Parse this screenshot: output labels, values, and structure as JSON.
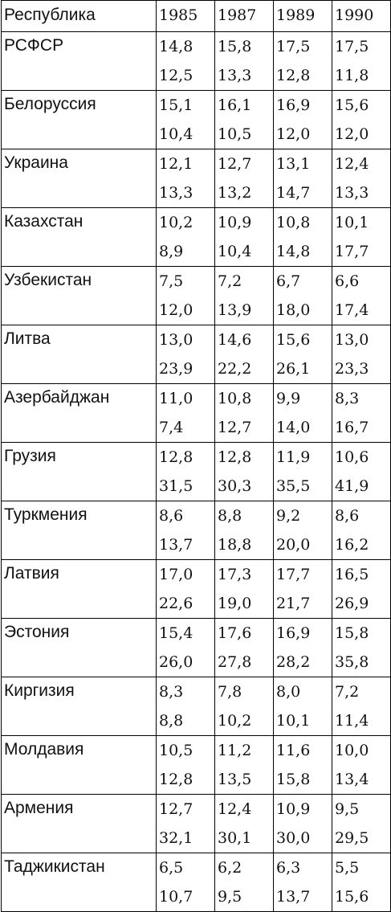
{
  "table": {
    "header": [
      "Республика",
      "1985",
      "1987",
      "1989",
      "1990"
    ],
    "rows": [
      {
        "label": "РСФСР",
        "cells": [
          [
            "14,8",
            "12,5"
          ],
          [
            "15,8",
            "13,3"
          ],
          [
            "17,5",
            "12,8"
          ],
          [
            "17,5",
            "11,8"
          ]
        ]
      },
      {
        "label": "Белоруссия",
        "cells": [
          [
            "15,1",
            "10,4"
          ],
          [
            "16,1",
            "10,5"
          ],
          [
            "16,9",
            "12,0"
          ],
          [
            "15,6",
            "12,0"
          ]
        ]
      },
      {
        "label": "Украина",
        "cells": [
          [
            "12,1",
            "13,3"
          ],
          [
            "12,7",
            "13,2"
          ],
          [
            "13,1",
            "14,7"
          ],
          [
            "12,4",
            "13,3"
          ]
        ]
      },
      {
        "label": "Казахстан",
        "cells": [
          [
            "10,2",
            "8,9"
          ],
          [
            "10,9",
            "10,4"
          ],
          [
            "10,8",
            "14,8"
          ],
          [
            "10,1",
            "17,7"
          ]
        ]
      },
      {
        "label": "Узбекистан",
        "cells": [
          [
            "7,5",
            "12,0"
          ],
          [
            "7,2",
            "13,9"
          ],
          [
            "6,7",
            "18,0"
          ],
          [
            "6,6",
            "17,4"
          ]
        ]
      },
      {
        "label": "Литва",
        "cells": [
          [
            "13,0",
            "23,9"
          ],
          [
            "14,6",
            "22,2"
          ],
          [
            "15,6",
            "26,1"
          ],
          [
            "13,0",
            "23,3"
          ]
        ]
      },
      {
        "label": "Азербайджан",
        "cells": [
          [
            "11,0",
            "7,4"
          ],
          [
            "10,8",
            "12,7"
          ],
          [
            "9,9",
            "14,0"
          ],
          [
            "8,3",
            "16,7"
          ]
        ]
      },
      {
        "label": "Грузия",
        "cells": [
          [
            "12,8",
            "31,5"
          ],
          [
            "12,8",
            "30,3"
          ],
          [
            "11,9",
            "35,5"
          ],
          [
            "10,6",
            "41,9"
          ]
        ]
      },
      {
        "label": "Туркмения",
        "cells": [
          [
            "8,6",
            "13,7"
          ],
          [
            "8,8",
            "18,8"
          ],
          [
            "9,2",
            "20,0"
          ],
          [
            "8,6",
            "16,2"
          ]
        ]
      },
      {
        "label": "Латвия",
        "cells": [
          [
            "17,0",
            "22,6"
          ],
          [
            "17,3",
            "19,0"
          ],
          [
            "17,7",
            "21,7"
          ],
          [
            "16,5",
            "26,9"
          ]
        ]
      },
      {
        "label": "Эстония",
        "cells": [
          [
            "15,4",
            "26,0"
          ],
          [
            "17,6",
            "27,8"
          ],
          [
            "16,9",
            "28,2"
          ],
          [
            "15,8",
            "35,8"
          ]
        ]
      },
      {
        "label": "Киргизия",
        "cells": [
          [
            "8,3",
            "8,8"
          ],
          [
            "7,8",
            "10,2"
          ],
          [
            "8,0",
            "10,1"
          ],
          [
            "7,2",
            "11,4"
          ]
        ]
      },
      {
        "label": "Молдавия",
        "cells": [
          [
            "10,5",
            "12,8"
          ],
          [
            "11,2",
            "13,5"
          ],
          [
            "11,6",
            "15,8"
          ],
          [
            "10,0",
            "13,4"
          ]
        ]
      },
      {
        "label": "Армения",
        "cells": [
          [
            "12,7",
            "32,1"
          ],
          [
            "12,4",
            "30,1"
          ],
          [
            "10,9",
            "30,0"
          ],
          [
            "9,5",
            "29,5"
          ]
        ]
      },
      {
        "label": "Таджикистан",
        "cells": [
          [
            "6,5",
            "10,7"
          ],
          [
            "6,2",
            "9,5"
          ],
          [
            "6,3",
            "13,7"
          ],
          [
            "5,5",
            "15,6"
          ]
        ]
      }
    ]
  }
}
